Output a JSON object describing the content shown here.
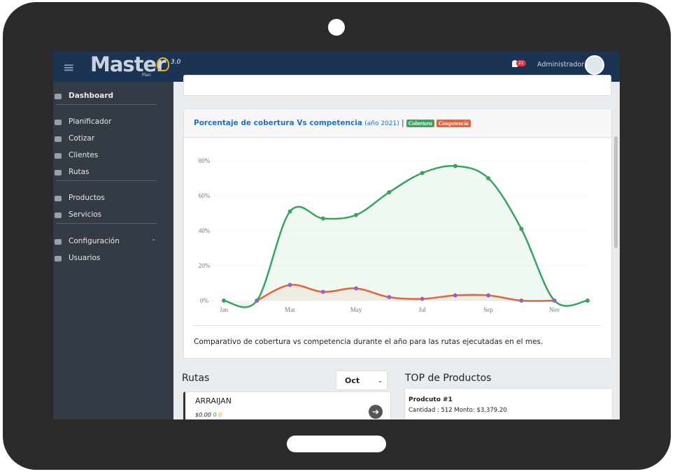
{
  "header": {
    "logo": "Master",
    "logo_sub": "Plan",
    "version": "3.0",
    "notifications": "22",
    "user": "Administrador"
  },
  "sidebar": {
    "items": [
      "Dashboard",
      "Planificador",
      "Cotizar",
      "Clientes",
      "Rutas",
      "Productos",
      "Servicios",
      "Configuración",
      "Usuarios"
    ]
  },
  "card": {
    "title": "Porcentaje de cobertura Vs competencia",
    "subtitle": "(año 2021)",
    "separator": "|",
    "footer": "Comparativo de cobertura vs competencia durante el año para las rutas ejecutadas en el mes."
  },
  "chart_data": {
    "type": "line",
    "categories": [
      "Jan",
      null,
      "Mar",
      null,
      "May",
      null,
      "Jul",
      null,
      "Sep",
      null,
      "Nov",
      null
    ],
    "series": [
      {
        "name": "Cobertura",
        "color": "#3aa35f",
        "values": [
          0,
          0,
          51,
          47,
          49,
          62,
          73,
          77,
          70,
          41,
          0,
          0
        ]
      },
      {
        "name": "Competencia",
        "color": "#e8613c",
        "values": [
          null,
          0,
          9,
          5,
          7,
          2,
          1,
          3,
          3,
          0,
          0,
          null
        ]
      }
    ],
    "ylim": [
      0,
      85
    ],
    "yticks": [
      {
        "value": 0,
        "label": "0%"
      },
      {
        "value": 20,
        "label": "20%"
      },
      {
        "value": 40,
        "label": "40%"
      },
      {
        "value": 60,
        "label": "60%"
      },
      {
        "value": 80,
        "label": "80%"
      }
    ],
    "grid": true
  },
  "rutas": {
    "title": "Rutas",
    "month": "Oct",
    "item": {
      "name": "ARRAIJAN",
      "amount": "$0.00",
      "ok": "0",
      "pending": "0"
    }
  },
  "top": {
    "title": "TOP de Productos",
    "item": {
      "name": "Prodcuto #1",
      "detail": "Cantidad : 512 Monto: $3,379.20"
    }
  }
}
